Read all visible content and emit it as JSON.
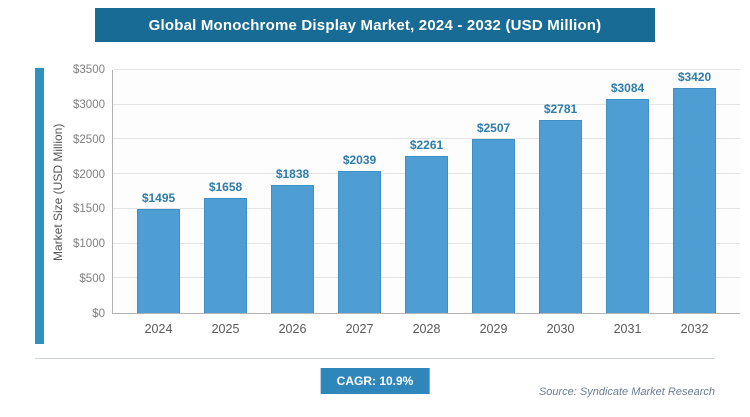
{
  "header": {
    "title": "Global Monochrome Display Market, 2024 - 2032 (USD Million)"
  },
  "chart_data": {
    "type": "bar",
    "title": "Global Monochrome Display Market, 2024 - 2032 (USD Million)",
    "categories": [
      "2024",
      "2025",
      "2026",
      "2027",
      "2028",
      "2029",
      "2030",
      "2031",
      "2032"
    ],
    "values": [
      1495,
      1658,
      1838,
      2039,
      2261,
      2507,
      2781,
      3084,
      3420
    ],
    "labels": [
      "$1495",
      "$1658",
      "$1838",
      "$2039",
      "$2261",
      "$2507",
      "$2781",
      "$3084",
      "$3420"
    ],
    "xlabel": "",
    "ylabel": "Market Size (USD Million)",
    "ylim": [
      0,
      3500
    ],
    "yticks": [
      {
        "value": 0,
        "label": "$0"
      },
      {
        "value": 500,
        "label": "$500"
      },
      {
        "value": 1000,
        "label": "$1000"
      },
      {
        "value": 1500,
        "label": "$1500"
      },
      {
        "value": 2000,
        "label": "$2000"
      },
      {
        "value": 2500,
        "label": "$2500"
      },
      {
        "value": 3000,
        "label": "$3000"
      },
      {
        "value": 3500,
        "label": "$3500"
      }
    ],
    "grid": true,
    "legend": false,
    "bar_color": "#4f9ed3",
    "bar_border_color": "#3d8fc4",
    "label_color": "#2d7cab"
  },
  "footer": {
    "cagr_label": "CAGR: 10.9%",
    "source": "Source: Syndicate Market Research"
  }
}
